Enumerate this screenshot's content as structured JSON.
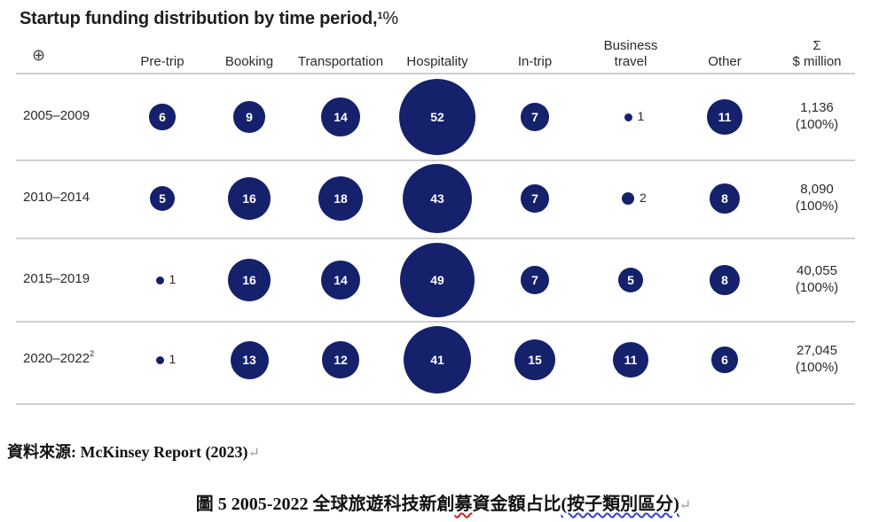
{
  "title": {
    "text": "Startup funding distribution by time period,",
    "note": "1",
    "unit": "%"
  },
  "icon": "crosshair-icon",
  "colors": {
    "bubble": "#15216b",
    "rule": "#cfcfcf"
  },
  "chart_data": {
    "type": "bubble-matrix",
    "title": "Startup funding distribution by time period, %",
    "columns": [
      "Pre-trip",
      "Booking",
      "Transportation",
      "Hospitality",
      "In-trip",
      "Business travel",
      "Other"
    ],
    "total_header": [
      "Σ",
      "$ million"
    ],
    "rows": [
      {
        "label": "2005–2009",
        "note": "",
        "values": [
          6,
          9,
          14,
          52,
          7,
          1,
          11
        ],
        "total": "1,136",
        "total_pct": "(100%)"
      },
      {
        "label": "2010–2014",
        "note": "",
        "values": [
          5,
          16,
          18,
          43,
          7,
          2,
          8
        ],
        "total": "8,090",
        "total_pct": "(100%)"
      },
      {
        "label": "2015–2019",
        "note": "",
        "values": [
          1,
          16,
          14,
          49,
          7,
          5,
          8
        ],
        "total": "40,055",
        "total_pct": "(100%)"
      },
      {
        "label": "2020–2022",
        "note": "2",
        "values": [
          1,
          13,
          12,
          41,
          15,
          11,
          6
        ],
        "total": "27,045",
        "total_pct": "(100%)"
      }
    ]
  },
  "source": {
    "label": "資料來源: McKinsey Report (2023)",
    "mark": "↵"
  },
  "caption": {
    "prefix": "圖 5 2005-2022  全球旅遊科技新創",
    "wave": "募",
    "middle": "資金額占比",
    "paren": "(按子類別區分)",
    "mark": "↵"
  }
}
